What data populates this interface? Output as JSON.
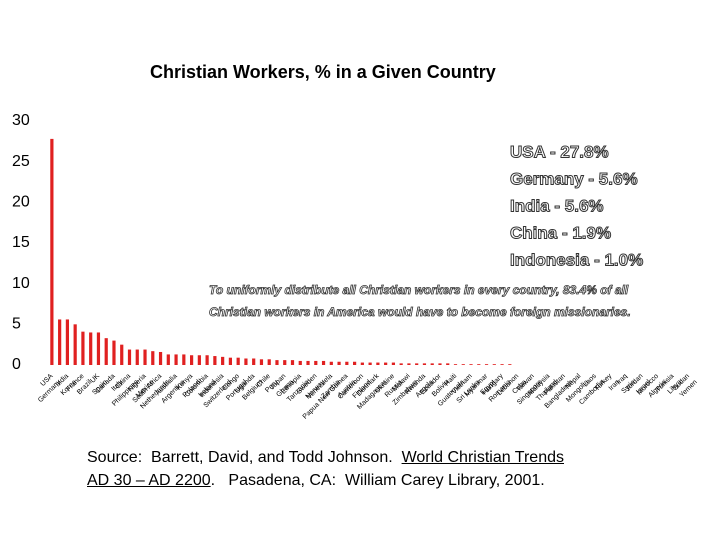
{
  "chart_data": {
    "type": "bar",
    "title": "Christian Workers, % in a Given Country",
    "categories": [
      "USA",
      "Germany",
      "India",
      "Korea",
      "France",
      "Brazil",
      "UK",
      "Spain",
      "Canada",
      "Italy",
      "China",
      "Philippines",
      "Nigeria",
      "Mexico",
      "South Africa",
      "Netherlands",
      "Australia",
      "Argentina",
      "Kenya",
      "Poland",
      "Colombia",
      "Ireland",
      "Indonesia",
      "Switzerland",
      "Congo",
      "Portugal",
      "Uganda",
      "Belgium",
      "Chile",
      "Peru",
      "Japan",
      "Ghana",
      "Ethiopia",
      "Tanzania",
      "Sweden",
      "Norway",
      "Venezuela",
      "Zambia",
      "Papua New Guinea",
      "Austria",
      "Cameroon",
      "Finland",
      "Denmark",
      "Madagascar",
      "Ukraine",
      "Russia",
      "Malawi",
      "Zimbabwe",
      "Rwanda",
      "Angola",
      "Ecuador",
      "Bolivia",
      "Haiti",
      "Guatemala",
      "Vietnam",
      "Sri Lanka",
      "Myanmar",
      "Egypt",
      "Hungary",
      "Romania",
      "Lebanon",
      "Cuba",
      "Taiwan",
      "Singapore",
      "Malaysia",
      "Thailand",
      "Pakistan",
      "Bangladesh",
      "Nepal",
      "Mongolia",
      "Laos",
      "Cambodia",
      "Turkey",
      "Iran",
      "Iraq",
      "Syria",
      "Jordan",
      "Israel",
      "Morocco",
      "Algeria",
      "Tunisia",
      "Libya",
      "Sudan",
      "Yemen"
    ],
    "values": [
      27.8,
      5.6,
      5.6,
      5.0,
      4.1,
      4.0,
      4.0,
      3.3,
      3.0,
      2.5,
      1.9,
      1.9,
      1.9,
      1.7,
      1.6,
      1.3,
      1.3,
      1.3,
      1.2,
      1.2,
      1.2,
      1.1,
      1.0,
      0.9,
      0.9,
      0.8,
      0.8,
      0.7,
      0.7,
      0.6,
      0.6,
      0.6,
      0.5,
      0.5,
      0.5,
      0.5,
      0.4,
      0.4,
      0.4,
      0.4,
      0.3,
      0.3,
      0.3,
      0.3,
      0.3,
      0.2,
      0.2,
      0.2,
      0.2,
      0.2,
      0.2,
      0.2,
      0.1,
      0.1,
      0.1,
      0.1,
      0.1,
      0.1,
      0.1,
      0.1,
      0,
      0,
      0,
      0,
      0,
      0,
      0,
      0,
      0,
      0,
      0,
      0,
      0,
      0,
      0,
      0,
      0,
      0,
      0,
      0,
      0,
      0,
      0,
      0
    ],
    "color": "#e02020",
    "ylim": [
      0,
      30
    ],
    "yticks": [
      0,
      5,
      10,
      15,
      20,
      25,
      30
    ],
    "grid": false,
    "annotations": [
      "USA - 27.8%",
      "Germany - 5.6%",
      "India - 5.6%",
      "China - 1.9%",
      "Indonesia - 1.0%"
    ],
    "note": [
      "To uniformly distribute all Christian workers in every country, 83.4% of all",
      "Christian workers in America would have to become foreign missionaries."
    ]
  },
  "source": [
    "Source:  Barrett, David, and Todd Johnson.  ",
    "World Christian Trends",
    "AD 30 – AD 2200",
    ".   Pasadena, CA:  William Carey Library, 2001."
  ]
}
